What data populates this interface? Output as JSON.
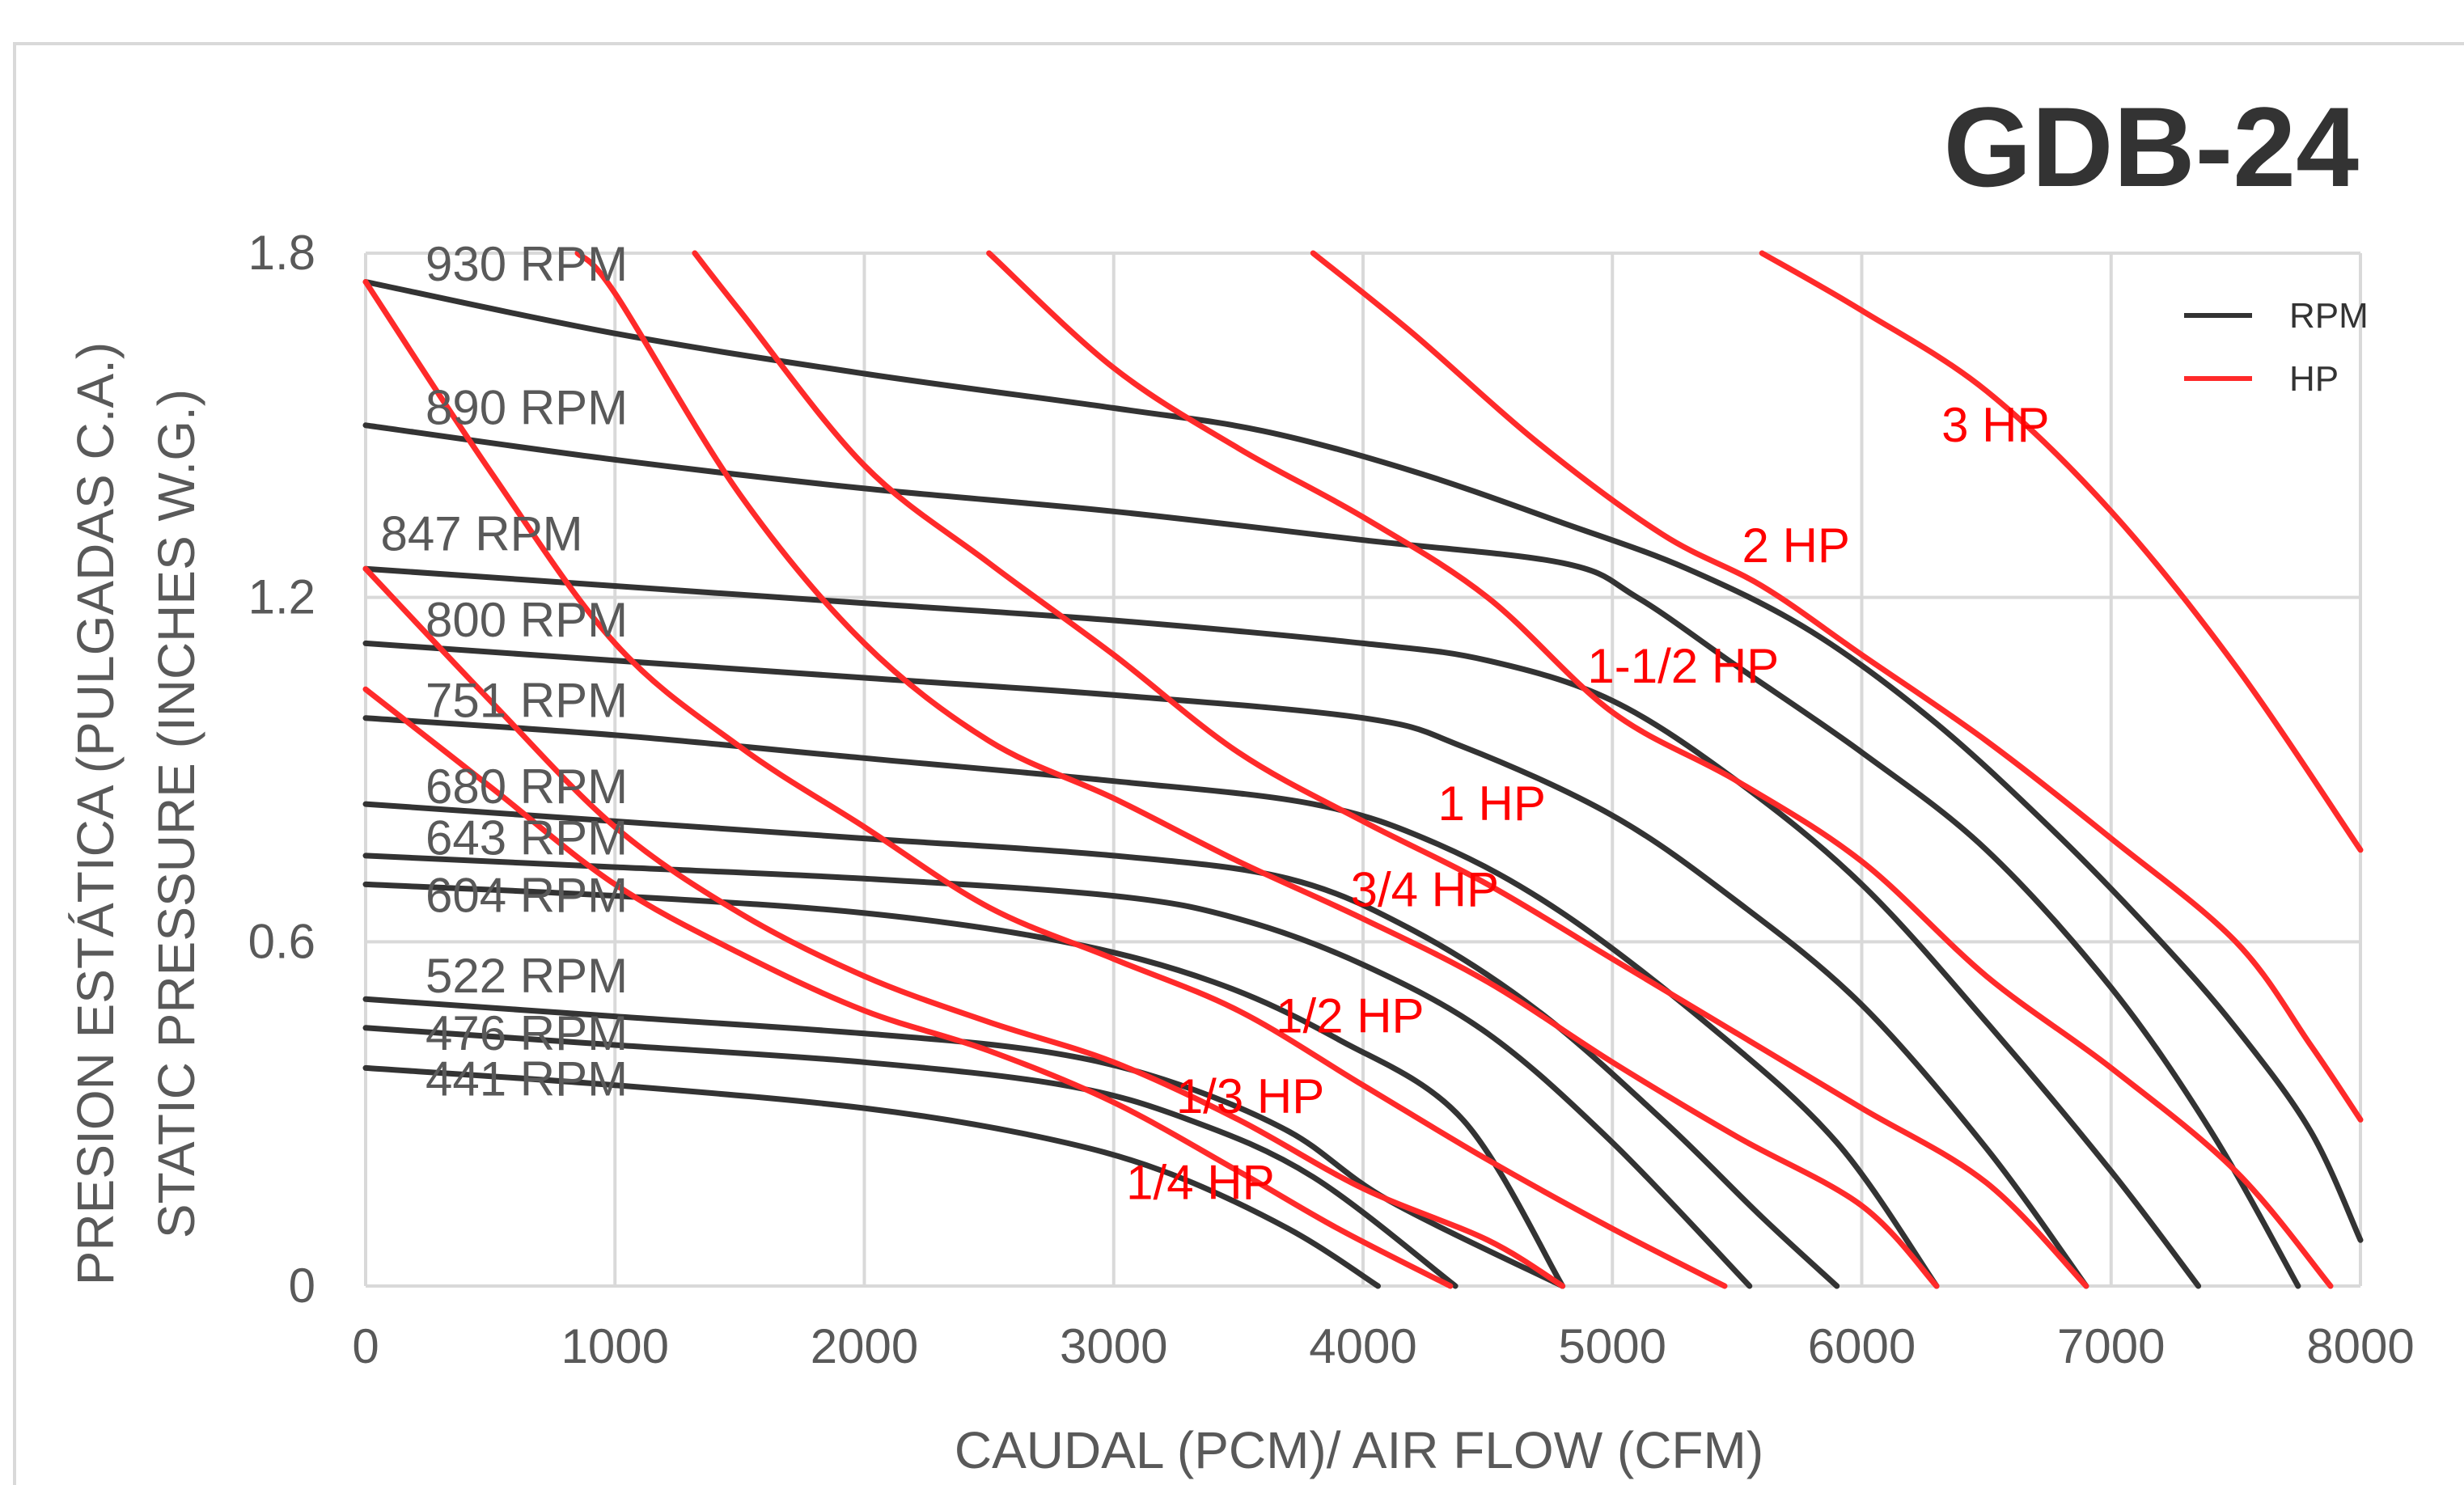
{
  "chart_data": {
    "type": "line",
    "title": "GDB-24",
    "xlabel": "CAUDAL (PCM)/ AIR FLOW (CFM)",
    "ylabel_lines": [
      "PRESION ESTÁTICA (PULGADAS C.A.)",
      "STATIC PRESSURE (INCHES W.G.)"
    ],
    "xlim": [
      0,
      8000
    ],
    "ylim": [
      0,
      1.8
    ],
    "x_ticks": [
      "0",
      "1000",
      "2000",
      "3000",
      "4000",
      "5000",
      "6000",
      "7000",
      "8000"
    ],
    "y_ticks": [
      "0",
      "0.6",
      "1.2",
      "1.8"
    ],
    "grid": true,
    "legend_position": "top-right",
    "legend": [
      {
        "name": "RPM",
        "color": "#333333"
      },
      {
        "name": "HP",
        "color": "#ff2a2a"
      }
    ],
    "rpm_series": [
      {
        "name": "930 RPM",
        "points": [
          [
            0,
            1.75
          ],
          [
            1000,
            1.66
          ],
          [
            2000,
            1.59
          ],
          [
            3000,
            1.53
          ],
          [
            3600,
            1.49
          ],
          [
            4200,
            1.42
          ],
          [
            4800,
            1.33
          ],
          [
            5300,
            1.25
          ],
          [
            5800,
            1.14
          ],
          [
            6300,
            0.98
          ],
          [
            6800,
            0.78
          ],
          [
            7200,
            0.6
          ],
          [
            7500,
            0.45
          ],
          [
            7800,
            0.27
          ],
          [
            8000,
            0.08
          ]
        ]
      },
      {
        "name": "890 RPM",
        "points": [
          [
            0,
            1.5
          ],
          [
            1000,
            1.44
          ],
          [
            2000,
            1.39
          ],
          [
            3000,
            1.35
          ],
          [
            4000,
            1.3
          ],
          [
            4800,
            1.26
          ],
          [
            5100,
            1.2
          ],
          [
            5500,
            1.08
          ],
          [
            6000,
            0.93
          ],
          [
            6500,
            0.76
          ],
          [
            7000,
            0.52
          ],
          [
            7400,
            0.27
          ],
          [
            7750,
            0
          ]
        ]
      },
      {
        "name": "847 RPM",
        "points": [
          [
            0,
            1.25
          ],
          [
            1000,
            1.22
          ],
          [
            2000,
            1.19
          ],
          [
            3000,
            1.16
          ],
          [
            4000,
            1.12
          ],
          [
            4500,
            1.09
          ],
          [
            5000,
            1.02
          ],
          [
            5500,
            0.88
          ],
          [
            6000,
            0.7
          ],
          [
            6500,
            0.46
          ],
          [
            7000,
            0.2
          ],
          [
            7350,
            0
          ]
        ]
      },
      {
        "name": "800 RPM",
        "points": [
          [
            0,
            1.12
          ],
          [
            1000,
            1.09
          ],
          [
            2000,
            1.06
          ],
          [
            3000,
            1.03
          ],
          [
            4000,
            0.99
          ],
          [
            4400,
            0.94
          ],
          [
            5000,
            0.82
          ],
          [
            5500,
            0.67
          ],
          [
            6000,
            0.49
          ],
          [
            6500,
            0.24
          ],
          [
            6900,
            0
          ]
        ]
      },
      {
        "name": "751 RPM",
        "points": [
          [
            0,
            0.99
          ],
          [
            1000,
            0.96
          ],
          [
            2000,
            0.92
          ],
          [
            3000,
            0.88
          ],
          [
            3800,
            0.84
          ],
          [
            4300,
            0.77
          ],
          [
            4800,
            0.65
          ],
          [
            5400,
            0.45
          ],
          [
            5900,
            0.25
          ],
          [
            6300,
            0
          ]
        ]
      },
      {
        "name": "680 RPM",
        "points": [
          [
            0,
            0.84
          ],
          [
            1000,
            0.81
          ],
          [
            2000,
            0.78
          ],
          [
            3000,
            0.75
          ],
          [
            3700,
            0.71
          ],
          [
            4200,
            0.62
          ],
          [
            4700,
            0.48
          ],
          [
            5200,
            0.29
          ],
          [
            5600,
            0.12
          ],
          [
            5900,
            0
          ]
        ]
      },
      {
        "name": "643 RPM",
        "points": [
          [
            0,
            0.75
          ],
          [
            1000,
            0.73
          ],
          [
            2000,
            0.71
          ],
          [
            3000,
            0.68
          ],
          [
            3500,
            0.64
          ],
          [
            4000,
            0.56
          ],
          [
            4500,
            0.44
          ],
          [
            5000,
            0.25
          ],
          [
            5550,
            0
          ]
        ]
      },
      {
        "name": "604 RPM",
        "points": [
          [
            0,
            0.7
          ],
          [
            1000,
            0.68
          ],
          [
            2000,
            0.65
          ],
          [
            2800,
            0.6
          ],
          [
            3400,
            0.53
          ],
          [
            3900,
            0.43
          ],
          [
            4400,
            0.29
          ],
          [
            4800,
            0
          ]
        ]
      },
      {
        "name": "522 RPM",
        "points": [
          [
            0,
            0.5
          ],
          [
            1000,
            0.47
          ],
          [
            2000,
            0.44
          ],
          [
            2700,
            0.41
          ],
          [
            3200,
            0.36
          ],
          [
            3700,
            0.27
          ],
          [
            4100,
            0.15
          ],
          [
            4800,
            0
          ]
        ]
      },
      {
        "name": "476 RPM",
        "points": [
          [
            0,
            0.45
          ],
          [
            1000,
            0.42
          ],
          [
            2000,
            0.39
          ],
          [
            2800,
            0.35
          ],
          [
            3300,
            0.29
          ],
          [
            3800,
            0.19
          ],
          [
            4370,
            0
          ]
        ]
      },
      {
        "name": "441 RPM",
        "points": [
          [
            0,
            0.38
          ],
          [
            1000,
            0.35
          ],
          [
            2000,
            0.31
          ],
          [
            2700,
            0.26
          ],
          [
            3200,
            0.2
          ],
          [
            3700,
            0.1
          ],
          [
            4060,
            0
          ]
        ]
      }
    ],
    "hp_series": [
      {
        "name": "1/4 HP",
        "points": [
          [
            0,
            1.04
          ],
          [
            500,
            0.87
          ],
          [
            1000,
            0.7
          ],
          [
            1500,
            0.58
          ],
          [
            2000,
            0.48
          ],
          [
            2500,
            0.41
          ],
          [
            3000,
            0.32
          ],
          [
            3500,
            0.2
          ],
          [
            3900,
            0.1
          ],
          [
            4350,
            0
          ]
        ]
      },
      {
        "name": "1/3 HP",
        "points": [
          [
            0,
            1.25
          ],
          [
            500,
            1.02
          ],
          [
            1000,
            0.8
          ],
          [
            1500,
            0.65
          ],
          [
            2000,
            0.54
          ],
          [
            2500,
            0.46
          ],
          [
            3000,
            0.39
          ],
          [
            3500,
            0.29
          ],
          [
            4000,
            0.17
          ],
          [
            4500,
            0.08
          ],
          [
            4800,
            0
          ]
        ]
      },
      {
        "name": "1/2 HP",
        "points": [
          [
            0,
            1.75
          ],
          [
            500,
            1.42
          ],
          [
            1000,
            1.12
          ],
          [
            1500,
            0.94
          ],
          [
            2000,
            0.8
          ],
          [
            2500,
            0.66
          ],
          [
            3000,
            0.57
          ],
          [
            3500,
            0.48
          ],
          [
            4000,
            0.35
          ],
          [
            4500,
            0.22
          ],
          [
            5000,
            0.1
          ],
          [
            5450,
            0
          ]
        ]
      },
      {
        "name": "3/4 HP",
        "points": [
          [
            850,
            1.8
          ],
          [
            1000,
            1.73
          ],
          [
            1500,
            1.38
          ],
          [
            2000,
            1.12
          ],
          [
            2500,
            0.95
          ],
          [
            3000,
            0.85
          ],
          [
            3500,
            0.74
          ],
          [
            4000,
            0.64
          ],
          [
            4500,
            0.53
          ],
          [
            5000,
            0.39
          ],
          [
            5500,
            0.26
          ],
          [
            6000,
            0.14
          ],
          [
            6300,
            0
          ]
        ]
      },
      {
        "name": "1 HP",
        "points": [
          [
            1320,
            1.8
          ],
          [
            1500,
            1.7
          ],
          [
            2000,
            1.43
          ],
          [
            2500,
            1.26
          ],
          [
            3000,
            1.1
          ],
          [
            3500,
            0.93
          ],
          [
            4000,
            0.81
          ],
          [
            4500,
            0.7
          ],
          [
            5000,
            0.57
          ],
          [
            5500,
            0.44
          ],
          [
            6000,
            0.31
          ],
          [
            6500,
            0.18
          ],
          [
            6900,
            0
          ]
        ]
      },
      {
        "name": "1-1/2 HP",
        "points": [
          [
            2500,
            1.8
          ],
          [
            3000,
            1.6
          ],
          [
            3500,
            1.46
          ],
          [
            4000,
            1.34
          ],
          [
            4500,
            1.2
          ],
          [
            5000,
            1.0
          ],
          [
            5500,
            0.88
          ],
          [
            6000,
            0.74
          ],
          [
            6500,
            0.54
          ],
          [
            7000,
            0.38
          ],
          [
            7500,
            0.2
          ],
          [
            7880,
            0
          ]
        ]
      },
      {
        "name": "2 HP",
        "points": [
          [
            3800,
            1.8
          ],
          [
            4200,
            1.66
          ],
          [
            4700,
            1.47
          ],
          [
            5200,
            1.31
          ],
          [
            5600,
            1.22
          ],
          [
            6000,
            1.1
          ],
          [
            6500,
            0.95
          ],
          [
            7000,
            0.78
          ],
          [
            7500,
            0.6
          ],
          [
            7800,
            0.42
          ],
          [
            8000,
            0.29
          ]
        ]
      },
      {
        "name": "3 HP",
        "points": [
          [
            5600,
            1.8
          ],
          [
            6000,
            1.7
          ],
          [
            6500,
            1.56
          ],
          [
            7000,
            1.35
          ],
          [
            7500,
            1.08
          ],
          [
            8000,
            0.76
          ]
        ]
      }
    ],
    "rpm_labels": [
      {
        "text": "930 RPM",
        "x": 240,
        "y": 1.78
      },
      {
        "text": "890 RPM",
        "x": 240,
        "y": 1.53
      },
      {
        "text": "847 RPM",
        "x": 60,
        "y": 1.31
      },
      {
        "text": "800 RPM",
        "x": 240,
        "y": 1.16
      },
      {
        "text": "751 RPM",
        "x": 240,
        "y": 1.02
      },
      {
        "text": "680 RPM",
        "x": 240,
        "y": 0.87
      },
      {
        "text": "643 RPM",
        "x": 240,
        "y": 0.78
      },
      {
        "text": "604 RPM",
        "x": 240,
        "y": 0.68
      },
      {
        "text": "522 RPM",
        "x": 240,
        "y": 0.54
      },
      {
        "text": "476 RPM",
        "x": 240,
        "y": 0.44
      },
      {
        "text": "441 RPM",
        "x": 240,
        "y": 0.36
      }
    ],
    "hp_labels": [
      {
        "text": "3 HP",
        "x": 6320,
        "y": 1.5
      },
      {
        "text": "2 HP",
        "x": 5520,
        "y": 1.29
      },
      {
        "text": "1-1/2 HP",
        "x": 4900,
        "y": 1.08
      },
      {
        "text": "1 HP",
        "x": 4300,
        "y": 0.84
      },
      {
        "text": "3/4 HP",
        "x": 3950,
        "y": 0.69
      },
      {
        "text": "1/2 HP",
        "x": 3650,
        "y": 0.47
      },
      {
        "text": "1/3 HP",
        "x": 3250,
        "y": 0.33
      },
      {
        "text": "1/4 HP",
        "x": 3050,
        "y": 0.18
      }
    ]
  }
}
